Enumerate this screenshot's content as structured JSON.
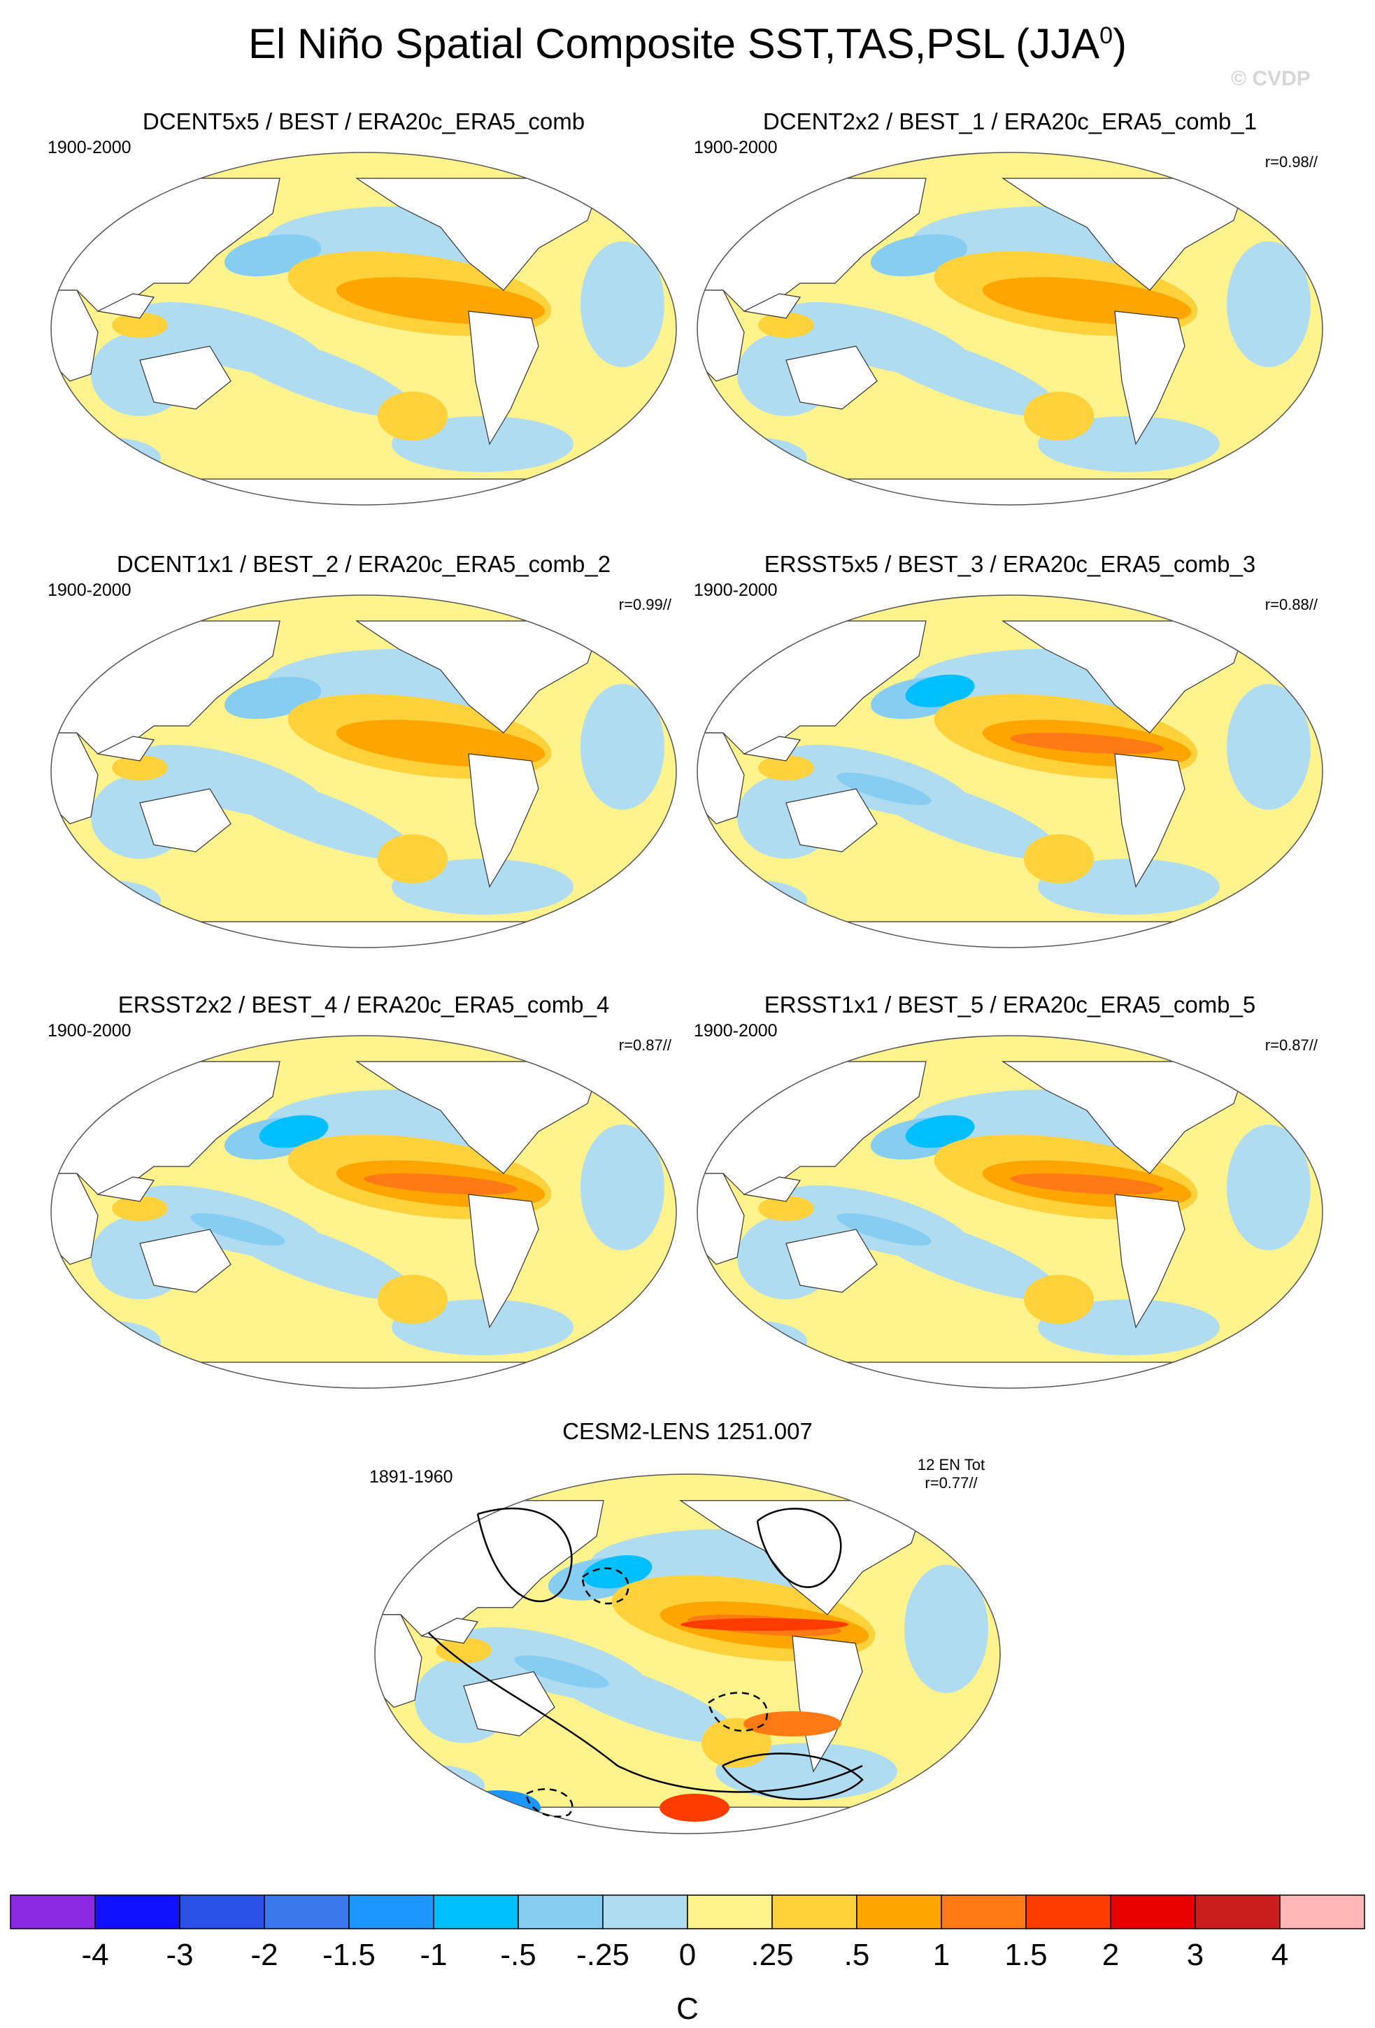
{
  "title": "El Niño Spatial Composite SST,TAS,PSL (JJA",
  "title_superscript": "0",
  "title_close": ")",
  "watermark": "© CVDP",
  "panels": [
    {
      "title": "DCENT5x5 / BEST / ERA20c_ERA5_comb",
      "period": "1900-2000",
      "r": ""
    },
    {
      "title": "DCENT2x2 / BEST_1 / ERA20c_ERA5_comb_1",
      "period": "1900-2000",
      "r": "r=0.98//"
    },
    {
      "title": "DCENT1x1 / BEST_2 / ERA20c_ERA5_comb_2",
      "period": "1900-2000",
      "r": "r=0.99//"
    },
    {
      "title": "ERSST5x5 / BEST_3 / ERA20c_ERA5_comb_3",
      "period": "1900-2000",
      "r": "r=0.88//"
    },
    {
      "title": "ERSST2x2 / BEST_4 / ERA20c_ERA5_comb_4",
      "period": "1900-2000",
      "r": "r=0.87//"
    },
    {
      "title": "ERSST1x1 / BEST_5 / ERA20c_ERA5_comb_5",
      "period": "1900-2000",
      "r": "r=0.87//"
    }
  ],
  "bottom_panel": {
    "title": "CESM2-LENS 1251.007",
    "period": "1891-1960",
    "count": "12 EN Tot",
    "r": "r=0.77//"
  },
  "chart_data": {
    "type": "heatmap",
    "projection": "Robinson, Pacific-centered",
    "variables": [
      "SST",
      "TAS",
      "PSL"
    ],
    "season": "JJA0",
    "contour_lines": "PSL anomalies (solid positive, dashed negative) on bottom panel only",
    "colorbar": {
      "unit": "C",
      "tick_labels": [
        "-4",
        "-3",
        "-2",
        "-1.5",
        "-1",
        "-.5",
        "-.25",
        "0",
        ".25",
        ".5",
        "1",
        "1.5",
        "2",
        "3",
        "4"
      ],
      "levels": [
        -4,
        -3,
        -2,
        -1.5,
        -1,
        -0.5,
        -0.25,
        0,
        0.25,
        0.5,
        1,
        1.5,
        2,
        3,
        4
      ],
      "colors": [
        "#8a2be2",
        "#1010ff",
        "#2a50e6",
        "#3c78ec",
        "#1e96ff",
        "#00bfff",
        "#87cdf2",
        "#b0dcf2",
        "#fff38e",
        "#ffd23c",
        "#ffa500",
        "#ff7a14",
        "#ff3c00",
        "#e60000",
        "#c81e1e",
        "#ffb6b6"
      ]
    }
  }
}
